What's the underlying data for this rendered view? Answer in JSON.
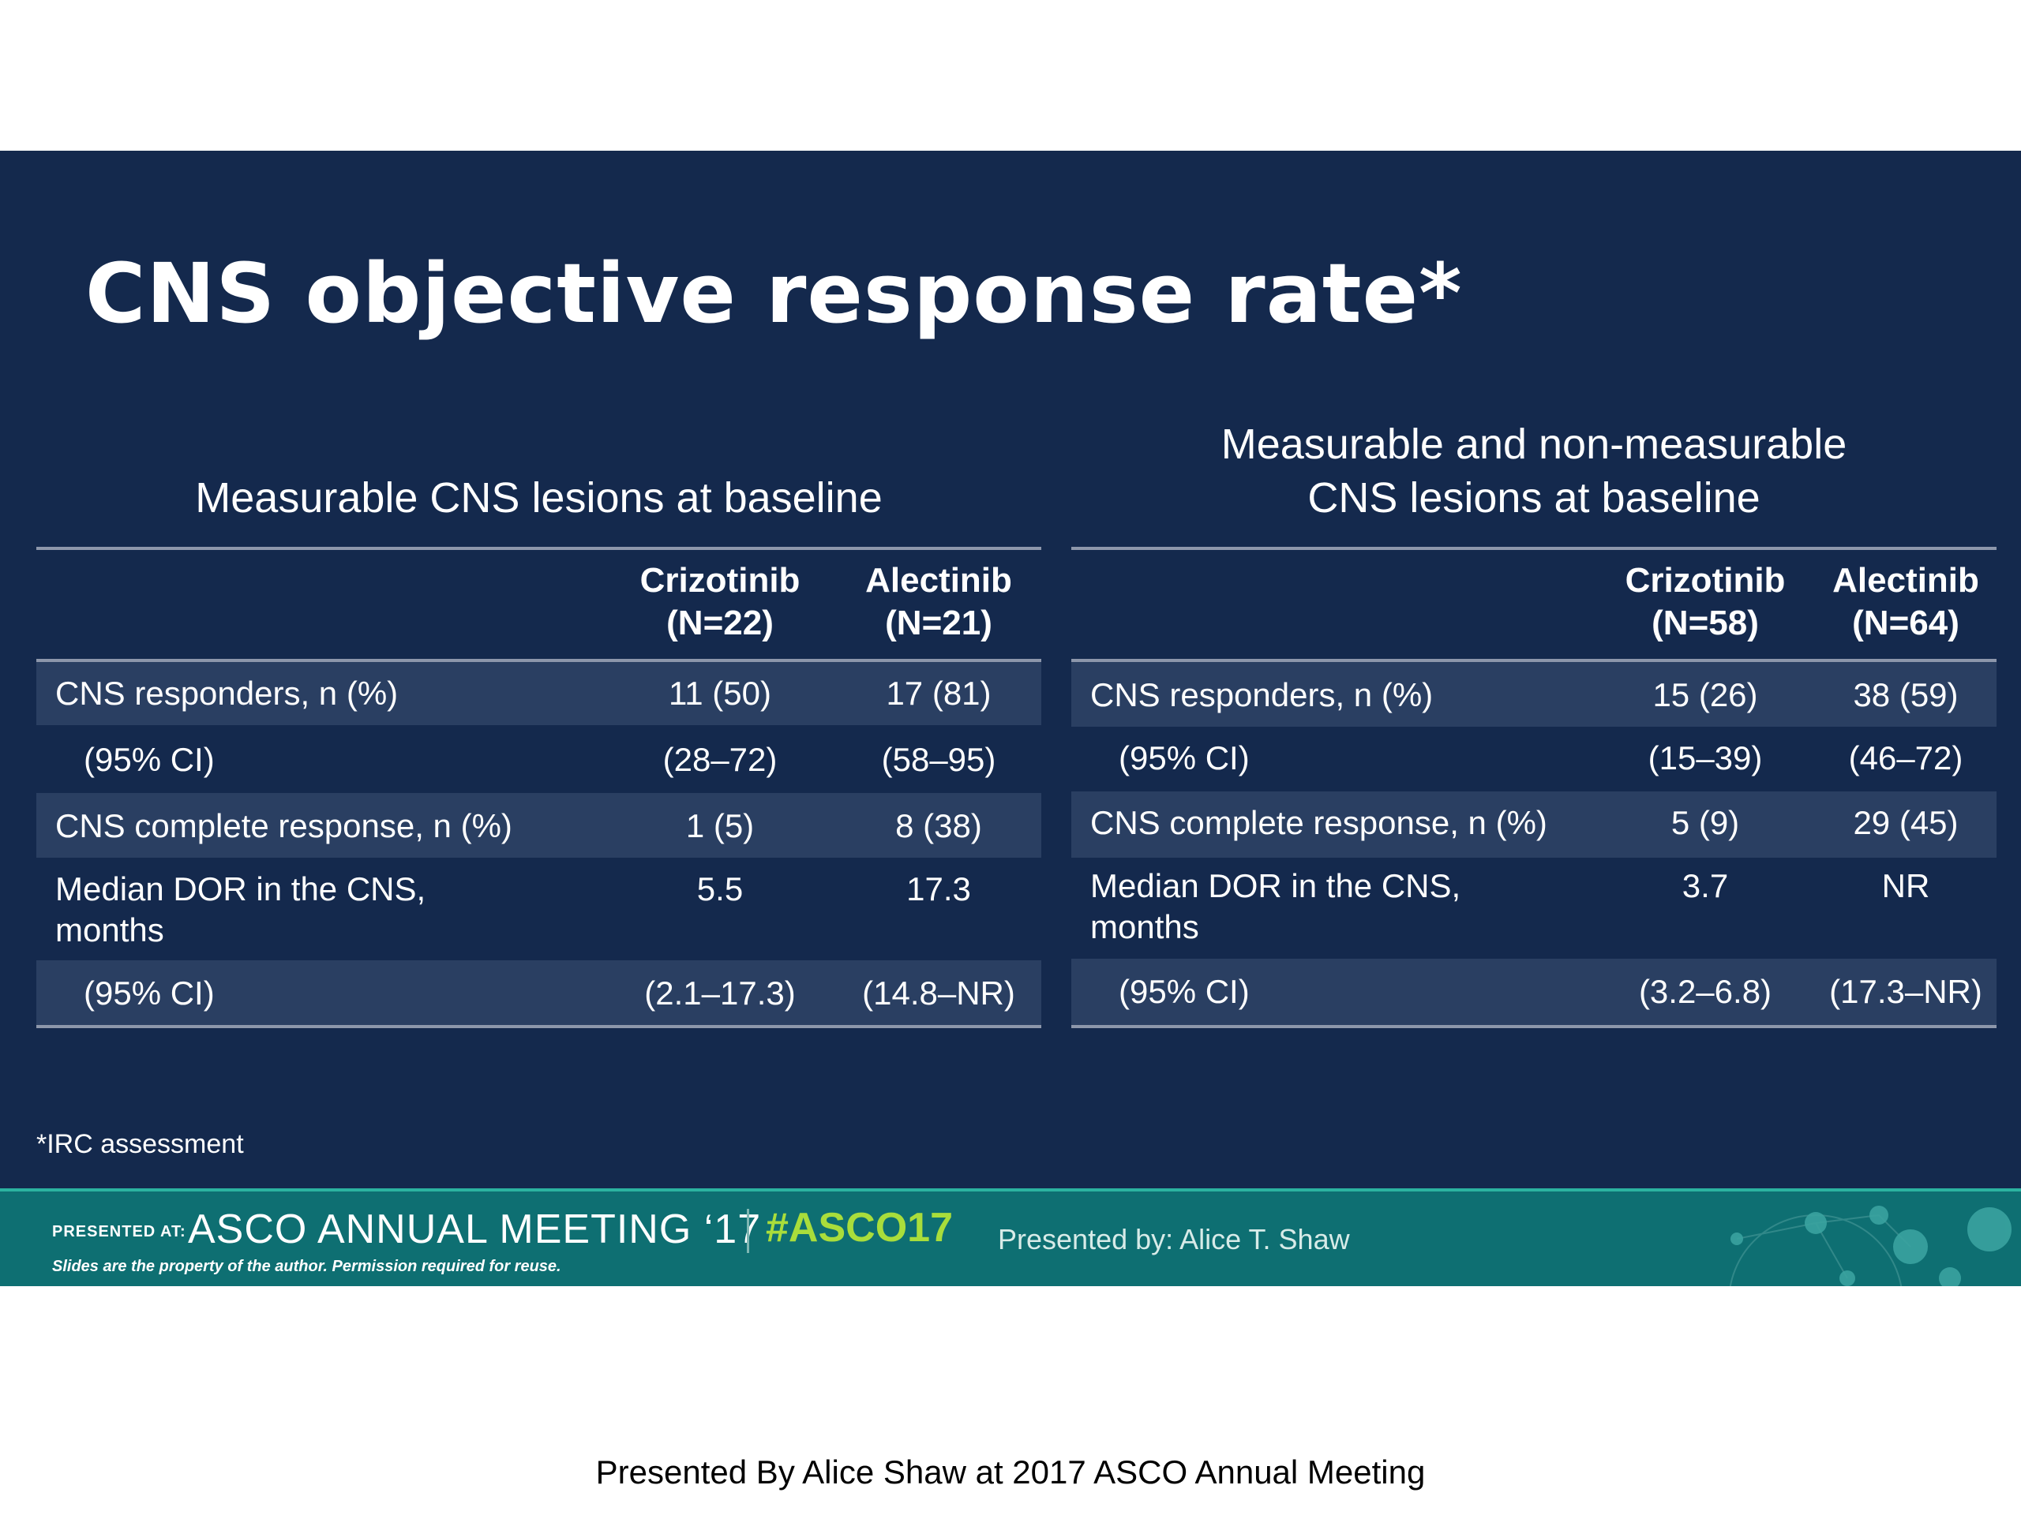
{
  "title": "CNS objective response rate*",
  "tables": [
    {
      "heading": [
        "Measurable CNS lesions at baseline"
      ],
      "columns": [
        {
          "name": "Crizotinib",
          "n": "(N=22)"
        },
        {
          "name": "Alectinib",
          "n": "(N=21)"
        }
      ],
      "rows": [
        {
          "label": [
            "CNS responders, n (%)"
          ],
          "values": [
            "11 (50)",
            "17 (81)"
          ]
        },
        {
          "label": [
            "(95% CI)"
          ],
          "values": [
            "(28–72)",
            "(58–95)"
          ]
        },
        {
          "label": [
            "CNS complete response, n (%)"
          ],
          "values": [
            "1 (5)",
            "8 (38)"
          ]
        },
        {
          "label": [
            "Median DOR in the CNS,",
            "months"
          ],
          "values": [
            "5.5",
            "17.3"
          ]
        },
        {
          "label": [
            "(95% CI)"
          ],
          "values": [
            "(2.1–17.3)",
            "(14.8–NR)"
          ]
        }
      ]
    },
    {
      "heading": [
        "Measurable and non-measurable",
        "CNS lesions at baseline"
      ],
      "columns": [
        {
          "name": "Crizotinib",
          "n": "(N=58)"
        },
        {
          "name": "Alectinib",
          "n": "(N=64)"
        }
      ],
      "rows": [
        {
          "label": [
            "CNS responders, n (%)"
          ],
          "values": [
            "15 (26)",
            "38 (59)"
          ]
        },
        {
          "label": [
            "(95% CI)"
          ],
          "values": [
            "(15–39)",
            "(46–72)"
          ]
        },
        {
          "label": [
            "CNS complete response, n (%)"
          ],
          "values": [
            "5 (9)",
            "29 (45)"
          ]
        },
        {
          "label": [
            "Median DOR in the CNS,",
            "months"
          ],
          "values": [
            "3.7",
            "NR"
          ]
        },
        {
          "label": [
            "(95% CI)"
          ],
          "values": [
            "(3.2–6.8)",
            "(17.3–NR)"
          ]
        }
      ]
    }
  ],
  "footnote": "*IRC assessment",
  "banner": {
    "presented_at": "PRESENTED AT:",
    "meeting": "ASCO ANNUAL MEETING ‘17",
    "hashtag": "#ASCO17",
    "disclaimer": "Slides are the property of the author. Permission required for reuse.",
    "presenter": "Presented by:  Alice T. Shaw"
  },
  "caption": "Presented By Alice Shaw at 2017 ASCO Annual Meeting",
  "colors": {
    "slide_background": "#14294d",
    "row_shade": "#2a3f62",
    "banner": "#0e6f72",
    "hashtag": "#a9dd3b"
  }
}
